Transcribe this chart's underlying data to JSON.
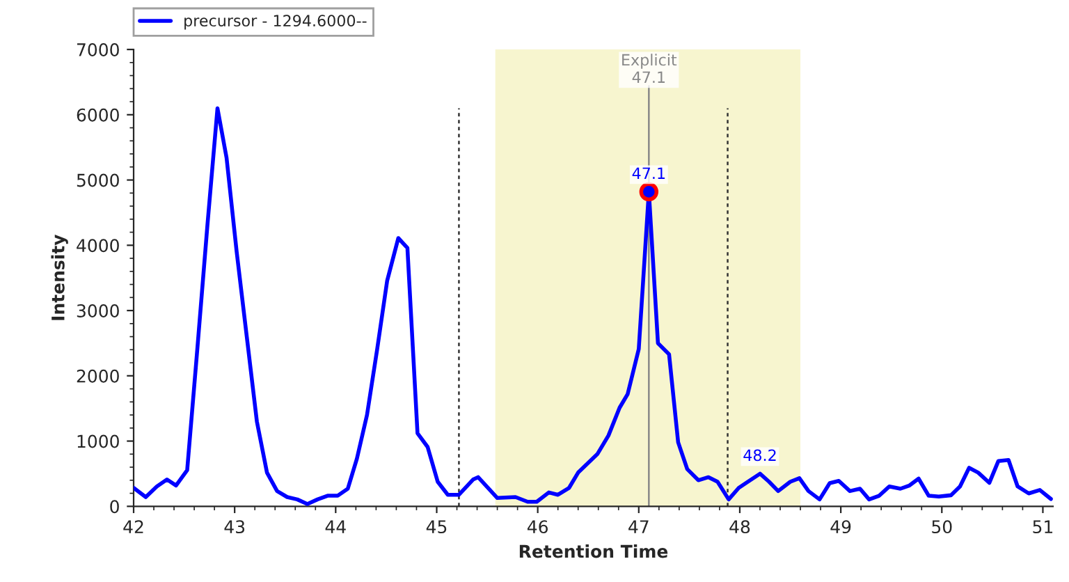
{
  "chart_data": {
    "type": "line",
    "xlabel": "Retention Time",
    "ylabel": "Intensity",
    "x": [
      42.0,
      42.12,
      42.23,
      42.33,
      42.42,
      42.53,
      42.63,
      42.73,
      42.83,
      42.92,
      43.02,
      43.12,
      43.22,
      43.32,
      43.42,
      43.52,
      43.62,
      43.72,
      43.82,
      43.92,
      44.02,
      44.12,
      44.21,
      44.31,
      44.41,
      44.51,
      44.62,
      44.71,
      44.81,
      44.91,
      45.01,
      45.11,
      45.22,
      45.36,
      45.41,
      45.6,
      45.78,
      45.9,
      45.99,
      46.11,
      46.2,
      46.31,
      46.4,
      46.59,
      46.7,
      46.81,
      46.89,
      47.0,
      47.1,
      47.19,
      47.3,
      47.39,
      47.48,
      47.59,
      47.69,
      47.78,
      47.89,
      47.99,
      48.08,
      48.2,
      48.29,
      48.38,
      48.5,
      48.59,
      48.68,
      48.79,
      48.89,
      48.98,
      49.09,
      49.19,
      49.28,
      49.38,
      49.48,
      49.59,
      49.68,
      49.77,
      49.87,
      49.97,
      50.09,
      50.18,
      50.27,
      50.36,
      50.47,
      50.56,
      50.66,
      50.75,
      50.86,
      50.97,
      51.08
    ],
    "series": [
      {
        "name": "precursor - 1294.6000--",
        "color": "#0000ff",
        "values": [
          283,
          142,
          305,
          411,
          319,
          553,
          2400,
          4300,
          6100,
          5340,
          3900,
          2600,
          1300,
          517,
          234,
          142,
          106,
          36,
          106,
          163,
          163,
          270,
          730,
          1400,
          2400,
          3460,
          4110,
          3960,
          1120,
          910,
          377,
          177,
          177,
          411,
          447,
          128,
          142,
          70,
          70,
          213,
          177,
          283,
          517,
          800,
          1085,
          1510,
          1720,
          2410,
          4820,
          2500,
          2330,
          980,
          570,
          400,
          447,
          377,
          106,
          283,
          377,
          500,
          377,
          234,
          377,
          432,
          234,
          106,
          355,
          390,
          234,
          270,
          106,
          163,
          305,
          270,
          320,
          425,
          163,
          150,
          170,
          305,
          590,
          517,
          360,
          695,
          710,
          305,
          198,
          250,
          113
        ]
      },
      {
        "type": "scatter",
        "color": "#ff0000",
        "x": [
          47.1
        ],
        "values": [
          4820
        ]
      }
    ],
    "xlim": [
      42,
      51.1
    ],
    "xticks": [
      42,
      43,
      44,
      45,
      46,
      47,
      48,
      49,
      50,
      51
    ],
    "ylim": [
      0,
      7000
    ],
    "yticks": [
      0,
      1000,
      2000,
      3000,
      4000,
      5000,
      6000,
      7000
    ],
    "bands": [
      {
        "axis": "x",
        "from": 45.58,
        "to": 48.6,
        "color": "#f7f5cf"
      }
    ],
    "ref_lines": [
      {
        "axis": "x",
        "value": 47.1,
        "label": "Explicit\n47.1",
        "color": "#888888",
        "line_style": "solid"
      },
      {
        "axis": "x",
        "value": 45.22,
        "color": "#333333",
        "line_style": "dotted"
      },
      {
        "axis": "x",
        "value": 47.88,
        "color": "#333333",
        "line_style": "dotted"
      }
    ],
    "annotations": [
      {
        "text": "47.1",
        "x": 47.1,
        "y": 4820
      },
      {
        "text": "48.2",
        "x": 48.2,
        "y": 500
      }
    ],
    "legend": "top left",
    "grid": false
  }
}
